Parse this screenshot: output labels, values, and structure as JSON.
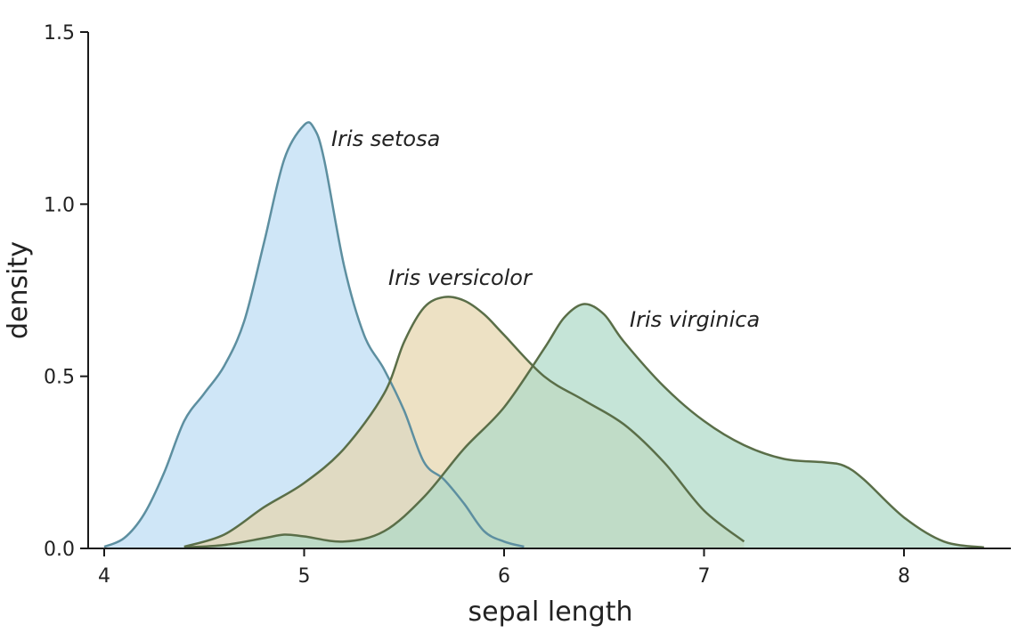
{
  "chart_data": {
    "type": "area",
    "title": "",
    "xlabel": "sepal length",
    "ylabel": "density",
    "xlim": [
      3.95,
      8.55
    ],
    "ylim": [
      0,
      1.5
    ],
    "x_ticks": [
      4,
      5,
      6,
      7,
      8
    ],
    "x_tick_labels": [
      "4",
      "5",
      "6",
      "7",
      "8"
    ],
    "y_ticks": [
      0,
      0.5,
      1.0,
      1.5
    ],
    "y_tick_labels": [
      "0.0",
      "0.5",
      "1.0",
      "1.5"
    ],
    "grid": false,
    "legend": "none",
    "series": [
      {
        "name": "Iris setosa",
        "fill": "#bcdcf4",
        "stroke": "#5d8fa0",
        "x": [
          4.0,
          4.1,
          4.2,
          4.3,
          4.4,
          4.5,
          4.6,
          4.7,
          4.8,
          4.9,
          5.0,
          5.05,
          5.1,
          5.2,
          5.3,
          5.4,
          5.5,
          5.6,
          5.7,
          5.8,
          5.9,
          6.0,
          6.1
        ],
        "values": [
          0.005,
          0.03,
          0.1,
          0.22,
          0.37,
          0.45,
          0.53,
          0.66,
          0.89,
          1.13,
          1.23,
          1.22,
          1.13,
          0.82,
          0.62,
          0.52,
          0.4,
          0.25,
          0.2,
          0.13,
          0.05,
          0.02,
          0.005
        ]
      },
      {
        "name": "Iris versicolor",
        "fill": "#e6d6ad",
        "stroke": "#5a6e48",
        "x": [
          4.4,
          4.6,
          4.8,
          5.0,
          5.2,
          5.4,
          5.5,
          5.6,
          5.7,
          5.8,
          5.9,
          6.0,
          6.2,
          6.4,
          6.6,
          6.8,
          7.0,
          7.2
        ],
        "values": [
          0.005,
          0.04,
          0.12,
          0.19,
          0.29,
          0.45,
          0.6,
          0.7,
          0.73,
          0.72,
          0.68,
          0.62,
          0.5,
          0.43,
          0.36,
          0.25,
          0.11,
          0.02
        ]
      },
      {
        "name": "Iris virginica",
        "fill": "#aed9c8",
        "stroke": "#5a6e48",
        "x": [
          4.4,
          4.6,
          4.8,
          4.9,
          5.0,
          5.2,
          5.4,
          5.6,
          5.8,
          6.0,
          6.2,
          6.3,
          6.4,
          6.5,
          6.6,
          6.8,
          7.0,
          7.2,
          7.4,
          7.6,
          7.7,
          7.8,
          8.0,
          8.2,
          8.4
        ],
        "values": [
          0.003,
          0.01,
          0.03,
          0.04,
          0.035,
          0.02,
          0.05,
          0.15,
          0.29,
          0.41,
          0.58,
          0.67,
          0.71,
          0.68,
          0.6,
          0.47,
          0.37,
          0.3,
          0.26,
          0.25,
          0.24,
          0.2,
          0.09,
          0.02,
          0.003
        ]
      }
    ]
  }
}
